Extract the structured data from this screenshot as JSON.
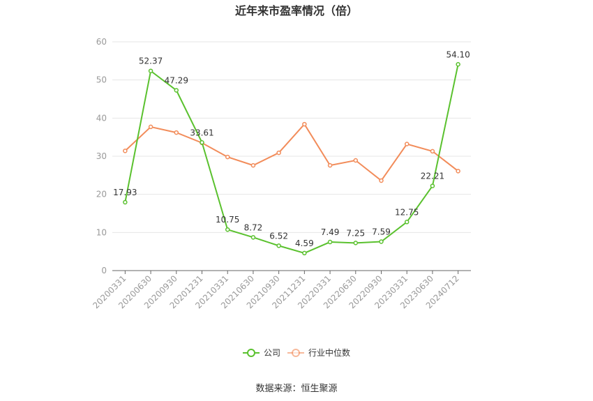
{
  "chart_data": {
    "type": "line",
    "title": "近年来市盈率情况（倍）",
    "source": "数据来源：恒生聚源",
    "categories": [
      "20200331",
      "20200630",
      "20200930",
      "20201231",
      "20210331",
      "20210630",
      "20210930",
      "20211231",
      "20220331",
      "20220630",
      "20220930",
      "20230331",
      "20230630",
      "20240712"
    ],
    "ylim": [
      0,
      60
    ],
    "yticks": [
      0,
      10,
      20,
      30,
      40,
      50,
      60
    ],
    "grid": true,
    "legend_position": "bottom",
    "series": [
      {
        "name": "公司",
        "color": "#5ac12e",
        "values": [
          17.93,
          52.37,
          47.29,
          33.61,
          10.75,
          8.72,
          6.52,
          4.59,
          7.49,
          7.25,
          7.59,
          12.75,
          22.21,
          54.1
        ],
        "labels": [
          "17.93",
          "52.37",
          "47.29",
          "33.61",
          "10.75",
          "8.72",
          "6.52",
          "4.59",
          "7.49",
          "7.25",
          "7.59",
          "12.75",
          "22.21",
          "54.10"
        ]
      },
      {
        "name": "行业中位数",
        "color": "#f28c5a",
        "values": [
          31.4,
          37.7,
          36.2,
          33.5,
          29.8,
          27.6,
          30.9,
          38.4,
          27.6,
          28.9,
          23.6,
          33.2,
          31.3,
          26.1
        ]
      }
    ]
  }
}
